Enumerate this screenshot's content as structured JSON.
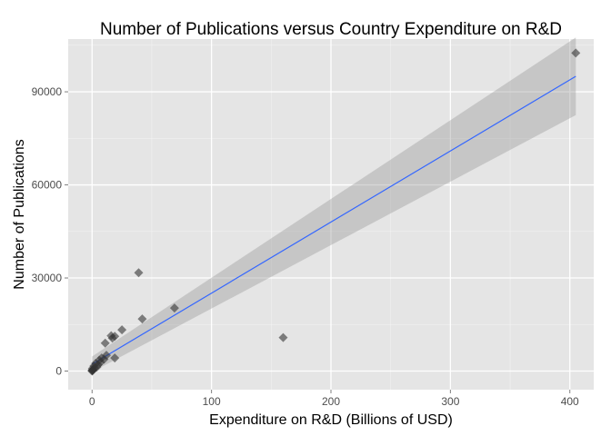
{
  "chart_data": {
    "type": "scatter",
    "title": "Number of Publications versus Country Expenditure on R&D",
    "xlabel": "Expenditure on R&D (Billions of USD)",
    "ylabel": "Number of Publications",
    "xlim": [
      -20,
      420
    ],
    "ylim": [
      -6000,
      107000
    ],
    "xticks": [
      0,
      100,
      200,
      300,
      400
    ],
    "yticks": [
      0,
      30000,
      60000,
      90000
    ],
    "xtick_labels": [
      "0",
      "100",
      "200",
      "300",
      "400"
    ],
    "ytick_labels": [
      "0",
      "30000",
      "60000",
      "90000"
    ],
    "grid": true,
    "background": "#e5e5e5",
    "grid_color": "#ffffff",
    "point_color": "#333333",
    "line_color": "#3366ff",
    "band_color": "#999999",
    "points": [
      {
        "x": 405,
        "y": 102500
      },
      {
        "x": 160,
        "y": 10800
      },
      {
        "x": 69,
        "y": 20300
      },
      {
        "x": 42,
        "y": 16800
      },
      {
        "x": 39,
        "y": 31700
      },
      {
        "x": 25,
        "y": 13300
      },
      {
        "x": 19,
        "y": 11200
      },
      {
        "x": 17,
        "y": 10600
      },
      {
        "x": 16,
        "y": 11400
      },
      {
        "x": 19,
        "y": 4200
      },
      {
        "x": 11,
        "y": 9000
      },
      {
        "x": 12,
        "y": 5100
      },
      {
        "x": 10,
        "y": 3800
      },
      {
        "x": 8,
        "y": 4200
      },
      {
        "x": 7,
        "y": 2800
      },
      {
        "x": 6,
        "y": 3500
      },
      {
        "x": 5,
        "y": 2000
      },
      {
        "x": 4,
        "y": 1300
      },
      {
        "x": 3,
        "y": 2500
      },
      {
        "x": 2,
        "y": 900
      },
      {
        "x": 1.5,
        "y": 1600
      },
      {
        "x": 1,
        "y": 500
      },
      {
        "x": 0.5,
        "y": 200
      },
      {
        "x": 0.3,
        "y": 800
      },
      {
        "x": 0.2,
        "y": 100
      },
      {
        "x": 0.1,
        "y": 300
      },
      {
        "x": 0,
        "y": 0
      }
    ],
    "fit_line": {
      "x": [
        0,
        405
      ],
      "y": [
        2200,
        95000
      ]
    },
    "confidence_band": {
      "x": [
        0,
        405
      ],
      "y_lower": [
        -300,
        82500
      ],
      "y_upper": [
        4700,
        107500
      ]
    }
  }
}
